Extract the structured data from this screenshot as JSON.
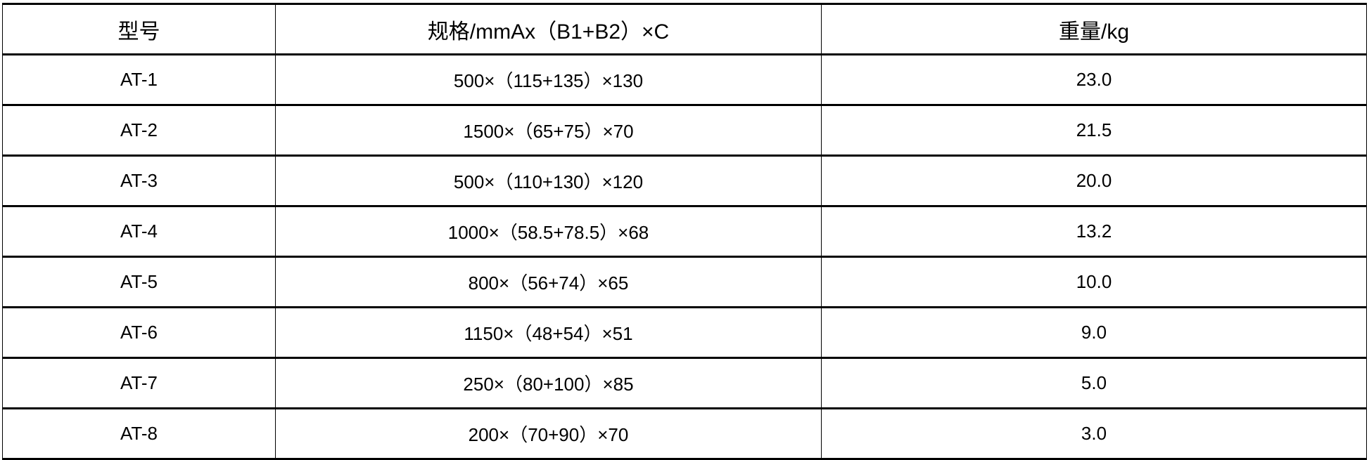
{
  "table": {
    "headers": [
      "型号",
      "规格/mmAx（B1+B2）×C",
      "重量/kg"
    ],
    "rows": [
      [
        "AT-1",
        "500×（115+135）×130",
        "23.0"
      ],
      [
        "AT-2",
        "1500×（65+75）×70",
        "21.5"
      ],
      [
        "AT-3",
        "500×（110+130）×120",
        "20.0"
      ],
      [
        "AT-4",
        "1000×（58.5+78.5）×68",
        "13.2"
      ],
      [
        "AT-5",
        "800×（56+74）×65",
        "10.0"
      ],
      [
        "AT-6",
        "1150×（48+54）×51",
        "9.0"
      ],
      [
        "AT-7",
        "250×（80+100）×85",
        "5.0"
      ],
      [
        "AT-8",
        "200×（70+90）×70",
        "3.0"
      ]
    ]
  }
}
